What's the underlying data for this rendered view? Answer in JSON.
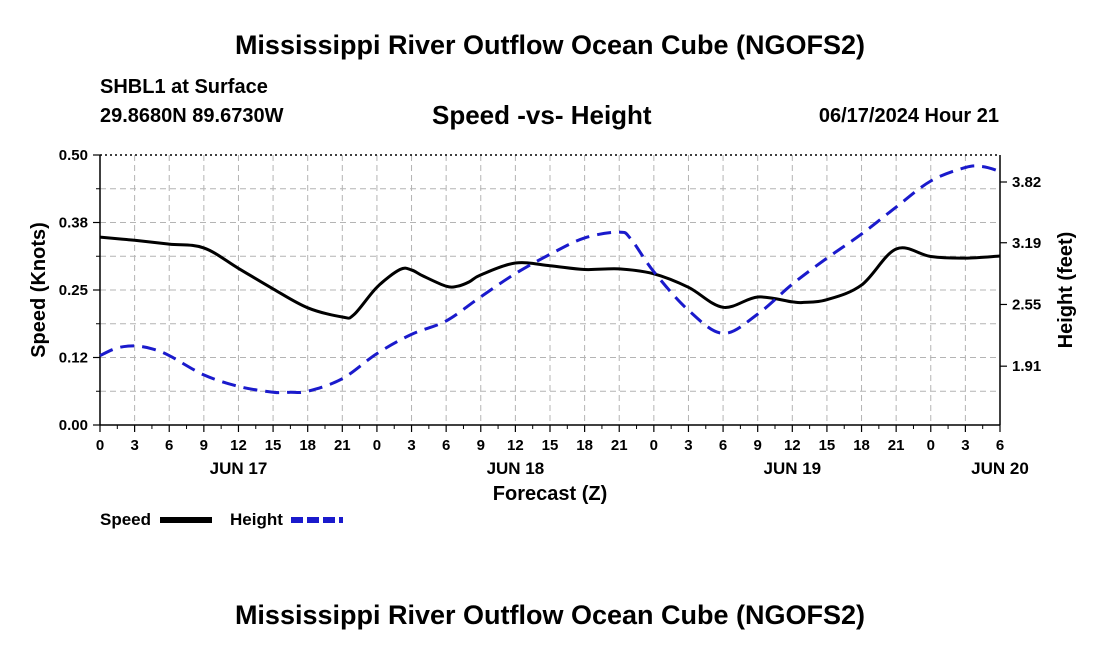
{
  "header": {
    "title": "Mississippi River Outflow Ocean Cube (NGOFS2)",
    "station": "SHBL1 at Surface",
    "coords": "29.8680N  89.6730W",
    "chart_subtitle": "Speed -vs- Height",
    "timestamp": "06/17/2024 Hour 21"
  },
  "footer": {
    "title": "Mississippi River Outflow Ocean Cube (NGOFS2)"
  },
  "colors": {
    "speed": "#000000",
    "height": "#1a1acc",
    "grid": "#b4b4b4"
  },
  "chart_data": {
    "type": "line",
    "title": "Speed -vs- Height",
    "xlabel": "Forecast (Z)",
    "ylabel": "Speed (Knots)",
    "y2label": "Height (feet)",
    "xlim": [
      0,
      78
    ],
    "ylim": [
      0,
      0.5
    ],
    "y2lim": [
      1.3,
      4.1
    ],
    "x_ticks": [
      0,
      3,
      6,
      9,
      12,
      15,
      18,
      21,
      24,
      27,
      30,
      33,
      36,
      39,
      42,
      45,
      48,
      51,
      54,
      57,
      60,
      63,
      66,
      69,
      72,
      75,
      78
    ],
    "x_tick_labels": [
      "0",
      "3",
      "6",
      "9",
      "12",
      "15",
      "18",
      "21",
      "0",
      "3",
      "6",
      "9",
      "12",
      "15",
      "18",
      "21",
      "0",
      "3",
      "6",
      "9",
      "12",
      "15",
      "18",
      "21",
      "0",
      "3",
      "6"
    ],
    "y_ticks": [
      0.0,
      0.125,
      0.25,
      0.375,
      0.5
    ],
    "y_tick_labels": [
      "0.00",
      "0.12",
      "0.25",
      "0.38",
      "0.50"
    ],
    "y2_ticks": [
      1.91,
      2.55,
      3.19,
      3.82
    ],
    "y2_tick_labels": [
      "1.91",
      "2.55",
      "3.19",
      "3.82"
    ],
    "date_labels": [
      {
        "x": 12,
        "label": "JUN 17"
      },
      {
        "x": 36,
        "label": "JUN 18"
      },
      {
        "x": 60,
        "label": "JUN 19"
      },
      {
        "x": 78,
        "label": "JUN 20"
      }
    ],
    "legend": [
      {
        "name": "Speed",
        "style": "solid"
      },
      {
        "name": "Height",
        "style": "dashed"
      }
    ],
    "series": [
      {
        "name": "Speed",
        "axis": "left",
        "x": [
          0,
          3,
          6,
          9,
          12,
          15,
          18,
          21,
          22,
          24,
          26,
          27,
          28,
          30,
          31,
          32,
          33,
          36,
          39,
          42,
          45,
          48,
          51,
          54,
          57,
          60,
          61,
          63,
          66,
          69,
          72,
          75,
          78
        ],
        "values": [
          0.348,
          0.342,
          0.335,
          0.328,
          0.29,
          0.252,
          0.217,
          0.2,
          0.204,
          0.255,
          0.288,
          0.287,
          0.276,
          0.257,
          0.257,
          0.265,
          0.278,
          0.3,
          0.295,
          0.288,
          0.289,
          0.28,
          0.255,
          0.218,
          0.237,
          0.228,
          0.227,
          0.232,
          0.259,
          0.326,
          0.312,
          0.309,
          0.313
        ]
      },
      {
        "name": "Height",
        "axis": "right",
        "x": [
          0,
          1.5,
          3,
          4.5,
          6,
          9,
          12,
          15,
          16.5,
          18,
          21,
          24,
          27,
          30,
          33,
          36,
          39,
          42,
          45,
          46,
          48,
          51,
          54,
          57,
          60,
          63,
          66,
          69,
          72,
          75,
          76.5,
          78
        ],
        "values": [
          2.02,
          2.1,
          2.12,
          2.09,
          2.02,
          1.82,
          1.7,
          1.64,
          1.64,
          1.65,
          1.78,
          2.04,
          2.24,
          2.38,
          2.63,
          2.87,
          3.07,
          3.24,
          3.3,
          3.23,
          2.89,
          2.49,
          2.25,
          2.45,
          2.76,
          3.03,
          3.28,
          3.56,
          3.83,
          3.97,
          3.98,
          3.93
        ]
      }
    ]
  }
}
